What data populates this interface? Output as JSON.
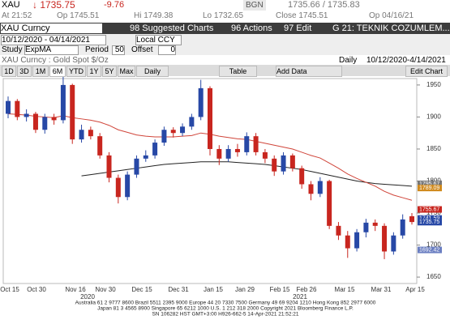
{
  "quote": {
    "ticker": "XAU",
    "last": "↓ 1735.75",
    "change": "-9.76",
    "bid_ask": "1735.66 / 1735.83",
    "source": "BGN"
  },
  "quote2": {
    "time": "At 21:52",
    "open": "Op 1745.51",
    "high": "Hi 1749.38",
    "low": "Lo 1732.65",
    "close": "Close 1745.51",
    "op_date": "Op 04/16/21"
  },
  "toolbar": {
    "security": "XAU Curncy",
    "buttons": [
      "98 Suggested Charts",
      "96 Actions",
      "97 Edit"
    ],
    "page": "G 21: TEKNIK COZUMLEM..."
  },
  "range": {
    "dates": "10/12/2020 - 04/14/2021",
    "currency": "Local CCY"
  },
  "study": {
    "label": "Study",
    "name": "ExpMA",
    "period_label": "Period",
    "period": "50",
    "offset_label": "Offset",
    "offset": "0"
  },
  "title": {
    "security": "XAU Curncy : Gold Spot  $/Oz",
    "frequency": "Daily",
    "span": "10/12/2020-4/14/2021"
  },
  "periods": [
    "1D",
    "3D",
    "1M",
    "6M",
    "YTD",
    "1Y",
    "5Y",
    "Max",
    "Daily"
  ],
  "actions": [
    "Table",
    "Add Data",
    "Edit Chart"
  ],
  "chart_data": {
    "type": "candlestick",
    "up_color": "#2748a6",
    "down_color": "#c8261f",
    "open": [
      1905,
      1925,
      1900,
      1905,
      1880,
      1900,
      1895,
      1950,
      1865,
      1880,
      1870,
      1840,
      1805,
      1775,
      1810,
      1835,
      1840,
      1860,
      1880,
      1875,
      1885,
      1900,
      1945,
      1850,
      1835,
      1850,
      1845,
      1870,
      1845,
      1835,
      1815,
      1840,
      1820,
      1795,
      1780,
      1800,
      1730,
      1715,
      1695,
      1720,
      1735,
      1730,
      1690,
      1715,
      1745
    ],
    "high": [
      1932,
      1928,
      1912,
      1908,
      1905,
      1905,
      1965,
      1952,
      1888,
      1885,
      1875,
      1845,
      1810,
      1815,
      1840,
      1848,
      1865,
      1885,
      1884,
      1890,
      1905,
      1958,
      1948,
      1856,
      1856,
      1858,
      1876,
      1875,
      1850,
      1840,
      1845,
      1843,
      1824,
      1800,
      1806,
      1802,
      1736,
      1722,
      1725,
      1741,
      1740,
      1734,
      1720,
      1748,
      1750
    ],
    "low": [
      1898,
      1895,
      1893,
      1875,
      1874,
      1888,
      1890,
      1858,
      1860,
      1865,
      1835,
      1798,
      1765,
      1770,
      1805,
      1830,
      1835,
      1855,
      1868,
      1870,
      1880,
      1895,
      1840,
      1825,
      1830,
      1838,
      1840,
      1840,
      1828,
      1808,
      1810,
      1815,
      1788,
      1770,
      1775,
      1725,
      1708,
      1680,
      1690,
      1712,
      1722,
      1678,
      1685,
      1710,
      1732
    ],
    "close": [
      1925,
      1900,
      1905,
      1880,
      1900,
      1895,
      1950,
      1865,
      1880,
      1870,
      1840,
      1805,
      1775,
      1810,
      1835,
      1840,
      1860,
      1880,
      1875,
      1885,
      1900,
      1945,
      1850,
      1835,
      1850,
      1845,
      1870,
      1845,
      1835,
      1815,
      1840,
      1820,
      1795,
      1780,
      1800,
      1730,
      1715,
      1695,
      1720,
      1735,
      1730,
      1690,
      1715,
      1740,
      1736
    ],
    "lines": [
      {
        "color": "#222222",
        "values": [
          null,
          null,
          null,
          null,
          null,
          null,
          null,
          null,
          1808,
          1810,
          1812,
          1814,
          1816,
          1818,
          1820,
          1822,
          1824,
          1826,
          1827,
          1828,
          1829,
          1830,
          1830,
          1830,
          1830,
          1829,
          1828,
          1827,
          1826,
          1824,
          1822,
          1820,
          1818,
          1815,
          1812,
          1809,
          1806,
          1803,
          1800,
          1798,
          1796,
          1795,
          1794,
          1793,
          1792
        ]
      },
      {
        "color": "#d0453a",
        "values": [
          1905,
          1904,
          1903,
          1901,
          1900,
          1899,
          1902,
          1899,
          1897,
          1895,
          1892,
          1887,
          1880,
          1876,
          1872,
          1870,
          1869,
          1869,
          1869,
          1870,
          1871,
          1875,
          1873,
          1870,
          1868,
          1866,
          1865,
          1862,
          1859,
          1856,
          1853,
          1850,
          1845,
          1840,
          1836,
          1828,
          1820,
          1811,
          1804,
          1798,
          1792,
          1784,
          1778,
          1774,
          1770
        ]
      }
    ],
    "ylim": [
      1640,
      1960
    ],
    "yticks": [
      1650,
      1700,
      1750,
      1800,
      1850,
      1900,
      1950
    ],
    "price_tags": [
      1795.67,
      1789.09,
      1755.67,
      1741.59,
      1735.75,
      1692.42
    ],
    "x_labels": [
      "Oct 15",
      "Oct 30",
      "Nov 16",
      "Nov 30",
      "Dec 15",
      "Dec 31",
      "Jan 15",
      "Jan 29",
      "Feb 15",
      "Feb 26",
      "Mar 15",
      "Mar 31",
      "Apr 15"
    ],
    "year_labels": [
      "2020",
      "2021"
    ]
  },
  "footer": [
    "Australia 61 2 9777 8600 Brazil 5511 2395 9000 Europe 44 20 7330 7500 Germany 49 69 9204 1210 Hong Kong 852 2977 6000",
    "Japan 81 3 4565 8900      Singapore 65 6212 1000      U.S. 1 212 318 2000      Copyright 2021 Bloomberg Finance L.P.",
    "SN 106282 HST  GMT+3:00 H926-662-5 14-Apr-2021 21:52:21"
  ]
}
